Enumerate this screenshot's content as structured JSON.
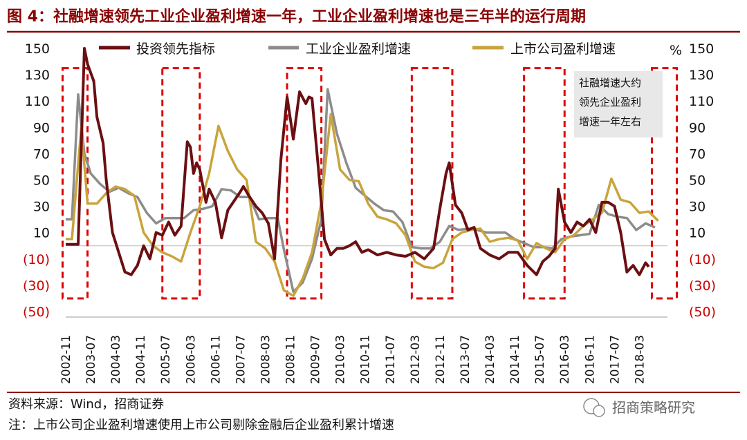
{
  "header": {
    "title": "图 4：社融增速领先工业企业盈利增速一年，工业企业盈利增速也是三年半的运行周期"
  },
  "footer": {
    "source": "资料来源：Wind，招商证券",
    "note": "注：上市公司企业盈利增速使用上市公司剔除金融后企业盈利累计增速",
    "watermark": "招商策略研究"
  },
  "colors": {
    "title": "#8B0000",
    "investment_line": "#6B0F12",
    "industrial_line": "#8C8C8C",
    "listed_line": "#C9A43C",
    "negative_ticks": "#CC0000",
    "dashed_boxes": "#E00000",
    "rule": "#8B0000",
    "annotation_bg": "#E8E8E8"
  },
  "chart_data": {
    "type": "line",
    "unit": "%",
    "ylim": [
      -50,
      150
    ],
    "y_ticks": [
      150,
      130,
      110,
      90,
      70,
      50,
      30,
      10,
      -10,
      -30,
      -50
    ],
    "y_tick_labels": [
      "150",
      "130",
      "110",
      "90",
      "70",
      "50",
      "30",
      "10",
      "(10)",
      "(30)",
      "(50)"
    ],
    "x_tick_labels": [
      "2002-11",
      "2003-07",
      "2004-03",
      "2004-11",
      "2005-07",
      "2006-03",
      "2006-11",
      "2007-07",
      "2008-03",
      "2008-11",
      "2009-07",
      "2010-03",
      "2010-11",
      "2011-07",
      "2012-03",
      "2012-11",
      "2013-07",
      "2014-03",
      "2014-11",
      "2015-07",
      "2016-03",
      "2016-11",
      "2017-07",
      "2018-03"
    ],
    "x_range_months": [
      "2002-11",
      "2018-12"
    ],
    "annotation": [
      "社融增速大约",
      "领先企业盈利",
      "增速一年左右"
    ],
    "highlight_periods": [
      {
        "start": "2002-10",
        "end": "2003-06"
      },
      {
        "start": "2005-06",
        "end": "2006-06"
      },
      {
        "start": "2008-10",
        "end": "2009-09"
      },
      {
        "start": "2012-02",
        "end": "2013-03"
      },
      {
        "start": "2015-02",
        "end": "2016-03"
      },
      {
        "start": "2018-07",
        "end": "2019-03"
      }
    ],
    "series": [
      {
        "name": "投资领先指标",
        "points": [
          [
            "2002-11",
            1
          ],
          [
            "2003-03",
            1
          ],
          [
            "2003-05",
            150
          ],
          [
            "2003-06",
            138
          ],
          [
            "2003-08",
            125
          ],
          [
            "2003-09",
            98
          ],
          [
            "2003-11",
            78
          ],
          [
            "2003-12",
            50
          ],
          [
            "2004-02",
            10
          ],
          [
            "2004-04",
            -5
          ],
          [
            "2004-06",
            -20
          ],
          [
            "2004-08",
            -22
          ],
          [
            "2004-10",
            -15
          ],
          [
            "2004-12",
            0
          ],
          [
            "2005-02",
            -10
          ],
          [
            "2005-04",
            10
          ],
          [
            "2005-06",
            8
          ],
          [
            "2005-08",
            18
          ],
          [
            "2005-10",
            8
          ],
          [
            "2005-12",
            15
          ],
          [
            "2006-02",
            79
          ],
          [
            "2006-03",
            75
          ],
          [
            "2006-04",
            55
          ],
          [
            "2006-05",
            63
          ],
          [
            "2006-06",
            58
          ],
          [
            "2006-08",
            33
          ],
          [
            "2006-09",
            43
          ],
          [
            "2006-11",
            33
          ],
          [
            "2007-01",
            6
          ],
          [
            "2007-03",
            27
          ],
          [
            "2007-05",
            34
          ],
          [
            "2007-07",
            41
          ],
          [
            "2007-08",
            45
          ],
          [
            "2007-10",
            37
          ],
          [
            "2007-12",
            30
          ],
          [
            "2008-02",
            25
          ],
          [
            "2008-04",
            17
          ],
          [
            "2008-06",
            -10
          ],
          [
            "2008-08",
            65
          ],
          [
            "2008-10",
            113
          ],
          [
            "2008-12",
            81
          ],
          [
            "2009-02",
            117
          ],
          [
            "2009-04",
            108
          ],
          [
            "2009-05",
            113
          ],
          [
            "2009-06",
            112
          ],
          [
            "2009-08",
            60
          ],
          [
            "2009-10",
            5
          ],
          [
            "2009-12",
            -7
          ],
          [
            "2010-02",
            -2
          ],
          [
            "2010-04",
            -2
          ],
          [
            "2010-06",
            0
          ],
          [
            "2010-08",
            3
          ],
          [
            "2010-10",
            -5
          ],
          [
            "2010-12",
            -3
          ],
          [
            "2011-03",
            -7
          ],
          [
            "2011-06",
            -5
          ],
          [
            "2011-09",
            -7
          ],
          [
            "2011-12",
            -8
          ],
          [
            "2012-03",
            -5
          ],
          [
            "2012-06",
            -10
          ],
          [
            "2012-09",
            -2
          ],
          [
            "2012-11",
            28
          ],
          [
            "2013-01",
            55
          ],
          [
            "2013-02",
            63
          ],
          [
            "2013-04",
            31
          ],
          [
            "2013-06",
            25
          ],
          [
            "2013-08",
            12
          ],
          [
            "2013-10",
            14
          ],
          [
            "2013-12",
            -2
          ],
          [
            "2014-03",
            -7
          ],
          [
            "2014-06",
            -10
          ],
          [
            "2014-09",
            -5
          ],
          [
            "2014-12",
            -5
          ],
          [
            "2015-03",
            -15
          ],
          [
            "2015-06",
            -22
          ],
          [
            "2015-08",
            -12
          ],
          [
            "2015-10",
            -8
          ],
          [
            "2015-12",
            -2
          ],
          [
            "2016-01",
            43
          ],
          [
            "2016-03",
            18
          ],
          [
            "2016-05",
            10
          ],
          [
            "2016-07",
            18
          ],
          [
            "2016-09",
            15
          ],
          [
            "2016-11",
            20
          ],
          [
            "2017-01",
            10
          ],
          [
            "2017-03",
            33
          ],
          [
            "2017-05",
            33
          ],
          [
            "2017-07",
            30
          ],
          [
            "2017-09",
            10
          ],
          [
            "2017-11",
            -20
          ],
          [
            "2018-01",
            -15
          ],
          [
            "2018-03",
            -22
          ],
          [
            "2018-05",
            -13
          ],
          [
            "2018-06",
            -16
          ]
        ]
      },
      {
        "name": "工业企业盈利增速",
        "points": [
          [
            "2002-11",
            20
          ],
          [
            "2003-01",
            20
          ],
          [
            "2003-03",
            115
          ],
          [
            "2003-05",
            70
          ],
          [
            "2003-07",
            55
          ],
          [
            "2003-10",
            47
          ],
          [
            "2004-01",
            41
          ],
          [
            "2004-04",
            44
          ],
          [
            "2004-07",
            40
          ],
          [
            "2004-10",
            37
          ],
          [
            "2005-01",
            25
          ],
          [
            "2005-04",
            17
          ],
          [
            "2005-07",
            21
          ],
          [
            "2005-10",
            21
          ],
          [
            "2006-01",
            21
          ],
          [
            "2006-04",
            27
          ],
          [
            "2006-07",
            28
          ],
          [
            "2006-10",
            30
          ],
          [
            "2007-01",
            43
          ],
          [
            "2007-04",
            42
          ],
          [
            "2007-07",
            37
          ],
          [
            "2007-10",
            37
          ],
          [
            "2008-01",
            20
          ],
          [
            "2008-04",
            21
          ],
          [
            "2008-07",
            21
          ],
          [
            "2008-09",
            -3
          ],
          [
            "2008-12",
            -35
          ],
          [
            "2009-03",
            -28
          ],
          [
            "2009-06",
            -10
          ],
          [
            "2009-09",
            20
          ],
          [
            "2009-11",
            119
          ],
          [
            "2010-02",
            85
          ],
          [
            "2010-05",
            63
          ],
          [
            "2010-08",
            44
          ],
          [
            "2010-11",
            38
          ],
          [
            "2011-02",
            32
          ],
          [
            "2011-05",
            27
          ],
          [
            "2011-08",
            26
          ],
          [
            "2011-11",
            18
          ],
          [
            "2012-02",
            -1
          ],
          [
            "2012-05",
            -2
          ],
          [
            "2012-08",
            -2
          ],
          [
            "2012-11",
            3
          ],
          [
            "2013-02",
            15
          ],
          [
            "2013-05",
            12
          ],
          [
            "2013-08",
            13
          ],
          [
            "2013-11",
            12
          ],
          [
            "2014-02",
            10
          ],
          [
            "2014-05",
            10
          ],
          [
            "2014-08",
            10
          ],
          [
            "2014-11",
            5
          ],
          [
            "2015-02",
            2
          ],
          [
            "2015-05",
            -1
          ],
          [
            "2015-08",
            -1
          ],
          [
            "2015-11",
            -2
          ],
          [
            "2016-02",
            5
          ],
          [
            "2016-05",
            7
          ],
          [
            "2016-08",
            8
          ],
          [
            "2016-11",
            9
          ],
          [
            "2017-02",
            31
          ],
          [
            "2017-05",
            24
          ],
          [
            "2017-08",
            22
          ],
          [
            "2017-11",
            21
          ],
          [
            "2018-02",
            12
          ],
          [
            "2018-05",
            17
          ],
          [
            "2018-08",
            14
          ]
        ]
      },
      {
        "name": "上市公司盈利增速",
        "points": [
          [
            "2002-11",
            5
          ],
          [
            "2003-01",
            5
          ],
          [
            "2003-04",
            90
          ],
          [
            "2003-06",
            32
          ],
          [
            "2003-09",
            32
          ],
          [
            "2003-12",
            40
          ],
          [
            "2004-03",
            45
          ],
          [
            "2004-06",
            43
          ],
          [
            "2004-09",
            38
          ],
          [
            "2004-12",
            10
          ],
          [
            "2005-03",
            0
          ],
          [
            "2005-06",
            -5
          ],
          [
            "2005-09",
            -8
          ],
          [
            "2005-12",
            -12
          ],
          [
            "2006-03",
            10
          ],
          [
            "2006-06",
            30
          ],
          [
            "2006-09",
            55
          ],
          [
            "2006-12",
            91
          ],
          [
            "2007-03",
            72
          ],
          [
            "2007-06",
            58
          ],
          [
            "2007-09",
            50
          ],
          [
            "2007-12",
            3
          ],
          [
            "2008-03",
            -2
          ],
          [
            "2008-06",
            -12
          ],
          [
            "2008-09",
            -34
          ],
          [
            "2008-12",
            -38
          ],
          [
            "2009-03",
            -25
          ],
          [
            "2009-06",
            -5
          ],
          [
            "2009-09",
            33
          ],
          [
            "2009-12",
            100
          ],
          [
            "2010-03",
            58
          ],
          [
            "2010-06",
            50
          ],
          [
            "2010-09",
            49
          ],
          [
            "2010-12",
            32
          ],
          [
            "2011-03",
            22
          ],
          [
            "2011-06",
            20
          ],
          [
            "2011-09",
            17
          ],
          [
            "2011-12",
            8
          ],
          [
            "2012-03",
            -12
          ],
          [
            "2012-06",
            -16
          ],
          [
            "2012-09",
            -17
          ],
          [
            "2012-12",
            -13
          ],
          [
            "2013-03",
            5
          ],
          [
            "2013-06",
            10
          ],
          [
            "2013-09",
            12
          ],
          [
            "2013-12",
            13
          ],
          [
            "2014-03",
            3
          ],
          [
            "2014-06",
            5
          ],
          [
            "2014-09",
            6
          ],
          [
            "2014-12",
            4
          ],
          [
            "2015-03",
            -10
          ],
          [
            "2015-06",
            2
          ],
          [
            "2015-09",
            -2
          ],
          [
            "2015-12",
            -5
          ],
          [
            "2016-03",
            5
          ],
          [
            "2016-06",
            8
          ],
          [
            "2016-09",
            15
          ],
          [
            "2016-12",
            20
          ],
          [
            "2017-03",
            25
          ],
          [
            "2017-06",
            51
          ],
          [
            "2017-09",
            35
          ],
          [
            "2017-12",
            33
          ],
          [
            "2018-03",
            25
          ],
          [
            "2018-06",
            26
          ],
          [
            "2018-09",
            19
          ]
        ]
      }
    ]
  }
}
